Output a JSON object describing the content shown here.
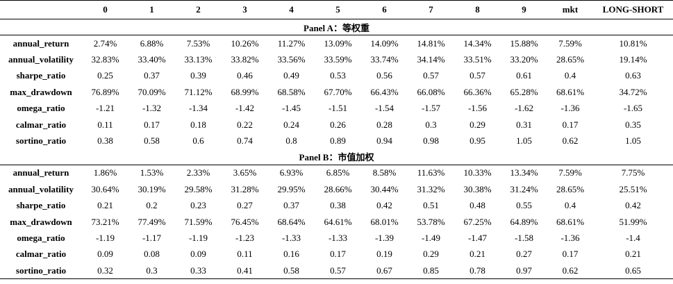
{
  "columns": [
    "",
    "0",
    "1",
    "2",
    "3",
    "4",
    "5",
    "6",
    "7",
    "8",
    "9",
    "mkt",
    "LONG-SHORT"
  ],
  "panels": [
    {
      "title": "Panel A：等权重",
      "rows": [
        {
          "label": "annual_return",
          "values": [
            "2.74%",
            "6.88%",
            "7.53%",
            "10.26%",
            "11.27%",
            "13.09%",
            "14.09%",
            "14.81%",
            "14.34%",
            "15.88%",
            "7.59%",
            "10.81%"
          ]
        },
        {
          "label": "annual_volatility",
          "values": [
            "32.83%",
            "33.40%",
            "33.13%",
            "33.82%",
            "33.56%",
            "33.59%",
            "33.74%",
            "34.14%",
            "33.51%",
            "33.20%",
            "28.65%",
            "19.14%"
          ]
        },
        {
          "label": "sharpe_ratio",
          "values": [
            "0.25",
            "0.37",
            "0.39",
            "0.46",
            "0.49",
            "0.53",
            "0.56",
            "0.57",
            "0.57",
            "0.61",
            "0.4",
            "0.63"
          ]
        },
        {
          "label": "max_drawdown",
          "values": [
            "76.89%",
            "70.09%",
            "71.12%",
            "68.99%",
            "68.58%",
            "67.70%",
            "66.43%",
            "66.08%",
            "66.36%",
            "65.28%",
            "68.61%",
            "34.72%"
          ]
        },
        {
          "label": "omega_ratio",
          "values": [
            "-1.21",
            "-1.32",
            "-1.34",
            "-1.42",
            "-1.45",
            "-1.51",
            "-1.54",
            "-1.57",
            "-1.56",
            "-1.62",
            "-1.36",
            "-1.65"
          ]
        },
        {
          "label": "calmar_ratio",
          "values": [
            "0.11",
            "0.17",
            "0.18",
            "0.22",
            "0.24",
            "0.26",
            "0.28",
            "0.3",
            "0.29",
            "0.31",
            "0.17",
            "0.35"
          ]
        },
        {
          "label": "sortino_ratio",
          "values": [
            "0.38",
            "0.58",
            "0.6",
            "0.74",
            "0.8",
            "0.89",
            "0.94",
            "0.98",
            "0.95",
            "1.05",
            "0.62",
            "1.05"
          ]
        }
      ]
    },
    {
      "title": "Panel B：市值加权",
      "rows": [
        {
          "label": "annual_return",
          "values": [
            "1.86%",
            "1.53%",
            "2.33%",
            "3.65%",
            "6.93%",
            "6.85%",
            "8.58%",
            "11.63%",
            "10.33%",
            "13.34%",
            "7.59%",
            "7.75%"
          ]
        },
        {
          "label": "annual_volatility",
          "values": [
            "30.64%",
            "30.19%",
            "29.58%",
            "31.28%",
            "29.95%",
            "28.66%",
            "30.44%",
            "31.32%",
            "30.38%",
            "31.24%",
            "28.65%",
            "25.51%"
          ]
        },
        {
          "label": "sharpe_ratio",
          "values": [
            "0.21",
            "0.2",
            "0.23",
            "0.27",
            "0.37",
            "0.38",
            "0.42",
            "0.51",
            "0.48",
            "0.55",
            "0.4",
            "0.42"
          ]
        },
        {
          "label": "max_drawdown",
          "values": [
            "73.21%",
            "77.49%",
            "71.59%",
            "76.45%",
            "68.64%",
            "64.61%",
            "68.01%",
            "53.78%",
            "67.25%",
            "64.89%",
            "68.61%",
            "51.99%"
          ]
        },
        {
          "label": "omega_ratio",
          "values": [
            "-1.19",
            "-1.17",
            "-1.19",
            "-1.23",
            "-1.33",
            "-1.33",
            "-1.39",
            "-1.49",
            "-1.47",
            "-1.58",
            "-1.36",
            "-1.4"
          ]
        },
        {
          "label": "calmar_ratio",
          "values": [
            "0.09",
            "0.08",
            "0.09",
            "0.11",
            "0.16",
            "0.17",
            "0.19",
            "0.29",
            "0.21",
            "0.27",
            "0.17",
            "0.21"
          ]
        },
        {
          "label": "sortino_ratio",
          "values": [
            "0.32",
            "0.3",
            "0.33",
            "0.41",
            "0.58",
            "0.57",
            "0.67",
            "0.85",
            "0.78",
            "0.97",
            "0.62",
            "0.65"
          ]
        }
      ]
    }
  ]
}
